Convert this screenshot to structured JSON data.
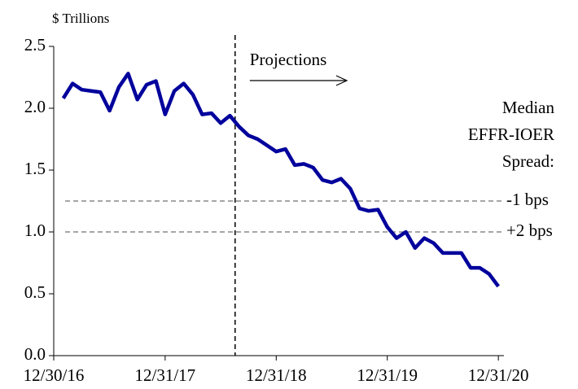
{
  "chart_data": {
    "type": "line",
    "y_label": "$ Trillions",
    "x": [
      2017.083,
      2017.167,
      2017.25,
      2017.333,
      2017.417,
      2017.5,
      2017.583,
      2017.667,
      2017.75,
      2017.833,
      2017.917,
      2018.0,
      2018.083,
      2018.167,
      2018.25,
      2018.333,
      2018.417,
      2018.5,
      2018.583,
      2018.667,
      2018.75,
      2018.833,
      2018.917,
      2019.0,
      2019.083,
      2019.167,
      2019.25,
      2019.333,
      2019.417,
      2019.5,
      2019.583,
      2019.667,
      2019.75,
      2019.833,
      2019.917,
      2020.0,
      2020.083,
      2020.167,
      2020.25,
      2020.333,
      2020.417,
      2020.5,
      2020.583,
      2020.667,
      2020.75,
      2020.833,
      2020.917,
      2021.0
    ],
    "series": [
      {
        "color": "#00009c",
        "values": [
          2.08,
          2.2,
          2.15,
          2.14,
          2.13,
          1.98,
          2.17,
          2.28,
          2.07,
          2.19,
          2.22,
          1.95,
          2.14,
          2.2,
          2.11,
          1.95,
          1.96,
          1.88,
          1.94,
          1.85,
          1.78,
          1.75,
          1.7,
          1.65,
          1.67,
          1.54,
          1.55,
          1.52,
          1.42,
          1.4,
          1.43,
          1.35,
          1.19,
          1.17,
          1.18,
          1.04,
          0.95,
          1.0,
          0.87,
          0.95,
          0.91,
          0.83,
          0.83,
          0.83,
          0.71,
          0.71,
          0.66,
          0.56
        ]
      }
    ],
    "xlim": [
      2016.997,
      2021.05
    ],
    "xticks": [
      {
        "value": 2016.997,
        "label": "12/30/16"
      },
      {
        "value": 2018.0,
        "label": "12/31/17"
      },
      {
        "value": 2019.0,
        "label": "12/31/18"
      },
      {
        "value": 2020.0,
        "label": "12/31/19"
      },
      {
        "value": 2021.0,
        "label": "12/31/20"
      }
    ],
    "ylim": [
      0,
      2.5
    ],
    "yticks": [
      {
        "value": 0,
        "label": "0.0"
      },
      {
        "value": 0.5,
        "label": "0.5"
      },
      {
        "value": 1,
        "label": "1.0"
      },
      {
        "value": 1.5,
        "label": "1.5"
      },
      {
        "value": 2,
        "label": "2.0"
      },
      {
        "value": 2.5,
        "label": "2.5"
      }
    ],
    "reference_lines": [
      {
        "value": 1.25,
        "label": "-1 bps"
      },
      {
        "value": 1.0,
        "label": "+2 bps"
      }
    ],
    "reference_title": [
      "Median",
      "EFFR-IOER",
      "Spread:"
    ],
    "projection_start": 2018.63,
    "projection_label": "Projections"
  }
}
